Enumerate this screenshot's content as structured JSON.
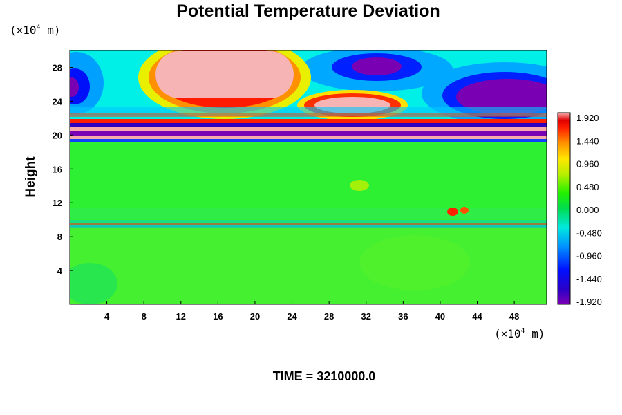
{
  "chart_data": {
    "type": "heatmap",
    "title": "Potential Temperature Deviation",
    "ylabel": "Height",
    "x_unit_prefix": "(×10",
    "x_unit_exp": "4",
    "x_unit_suffix": " m)",
    "y_unit_prefix": "(×10",
    "y_unit_exp": "4",
    "y_unit_suffix": " m)",
    "xlim": [
      0,
      51.5
    ],
    "ylim": [
      0,
      30
    ],
    "x_ticks": [
      4,
      8,
      12,
      16,
      20,
      24,
      28,
      32,
      36,
      40,
      44,
      48
    ],
    "y_ticks": [
      4,
      8,
      12,
      16,
      20,
      24,
      28
    ],
    "time_label": "TIME = 3210000.0",
    "colorbar": {
      "ticks": [
        "1.920",
        "1.440",
        "0.960",
        "0.480",
        "0.000",
        "-0.480",
        "-0.960",
        "-1.440",
        "-1.920"
      ],
      "min": -1.92,
      "max": 1.92
    },
    "features": [
      {
        "x": 16,
        "y": 26.5,
        "value": 1.92
      },
      {
        "x": 29,
        "y": 23.5,
        "value": 1.92
      },
      {
        "x": 33,
        "y": 28,
        "value": -1.92
      },
      {
        "x": 1,
        "y": 25.5,
        "value": -1.92
      },
      {
        "x": 48,
        "y": 25,
        "value": -1.92
      },
      {
        "x": 41.5,
        "y": 11,
        "value": 1.2
      },
      {
        "x": 37,
        "y": 14,
        "value": 0.4
      }
    ]
  }
}
